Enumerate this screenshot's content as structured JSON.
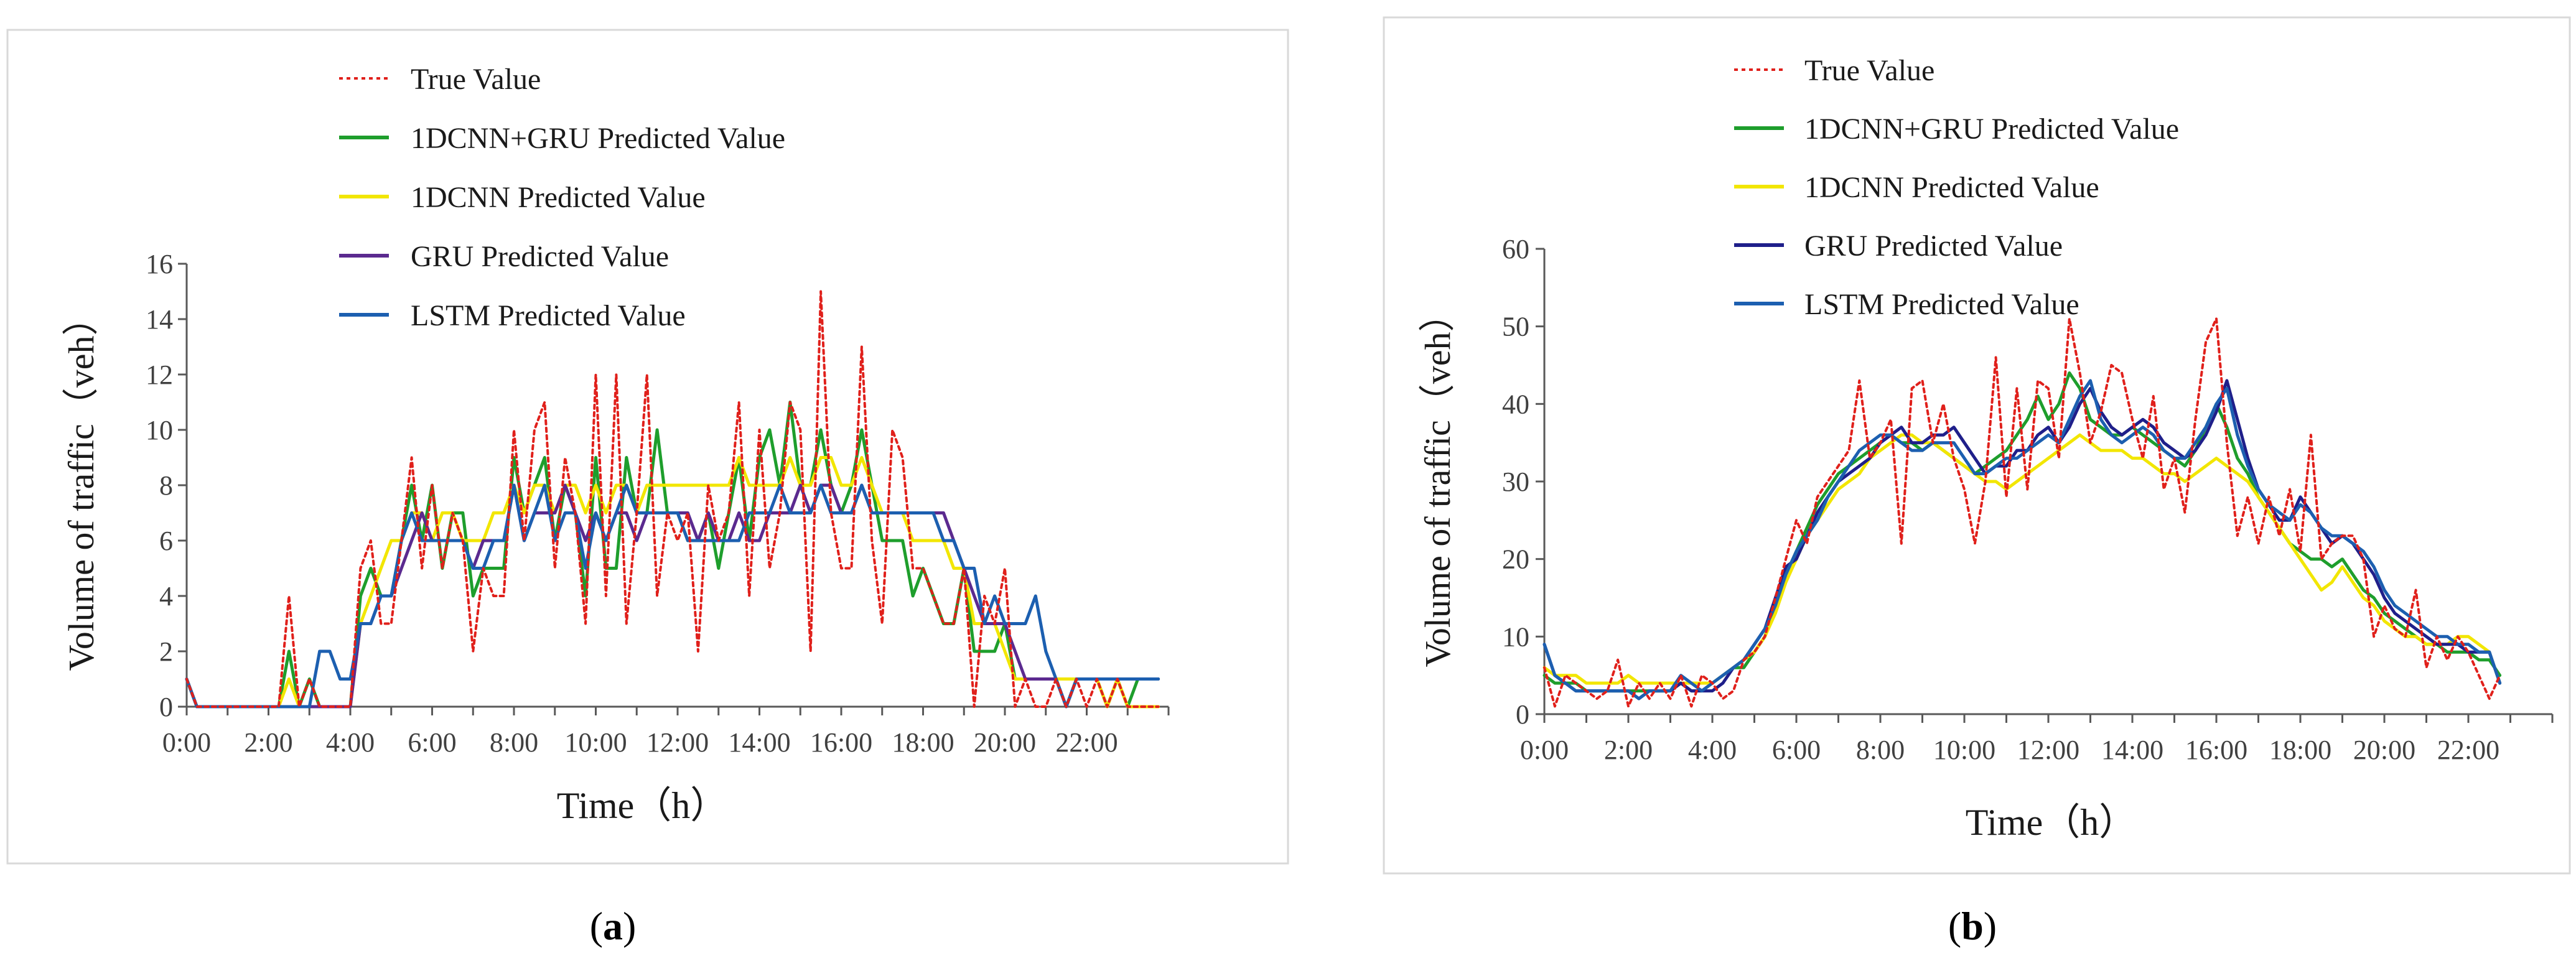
{
  "figure": {
    "panels": [
      {
        "caption_open": "(",
        "caption_letter": "a",
        "caption_close": ")"
      },
      {
        "caption_open": "(",
        "caption_letter": "b",
        "caption_close": ")"
      }
    ]
  },
  "chart_data": [
    {
      "type": "line",
      "title": "",
      "xlabel": "Time（h）",
      "ylabel": "Volume of traffic（veh）",
      "xlim": [
        0,
        24
      ],
      "ylim": [
        0,
        16
      ],
      "yticks": [
        0,
        2,
        4,
        6,
        8,
        10,
        12,
        14,
        16
      ],
      "xtick_labels": [
        "0:00",
        "2:00",
        "4:00",
        "6:00",
        "8:00",
        "10:00",
        "12:00",
        "14:00",
        "16:00",
        "18:00",
        "20:00",
        "22:00"
      ],
      "legend_position": "top-left",
      "x_step_hours": 0.25,
      "series": [
        {
          "name": "True Value",
          "color": "#e0201b",
          "style": "dotted",
          "values": [
            1,
            0,
            0,
            0,
            0,
            0,
            0,
            0,
            0,
            0,
            4,
            0,
            1,
            0,
            0,
            0,
            0,
            5,
            6,
            3,
            3,
            6,
            9,
            5,
            8,
            5,
            7,
            6,
            2,
            5,
            4,
            4,
            10,
            6,
            10,
            11,
            5,
            9,
            7,
            3,
            12,
            4,
            12,
            3,
            7,
            12,
            4,
            7,
            6,
            7,
            2,
            8,
            6,
            7,
            11,
            4,
            10,
            5,
            7,
            11,
            10,
            2,
            15,
            7,
            5,
            5,
            13,
            6,
            3,
            10,
            9,
            5,
            5,
            4,
            3,
            3,
            5,
            0,
            4,
            3,
            5,
            0,
            1,
            0,
            0,
            1,
            0,
            1,
            0,
            1,
            0,
            1,
            0,
            0,
            0,
            0
          ]
        },
        {
          "name": "1DCNN+GRU Predicted Value",
          "color": "#1e9e2c",
          "style": "solid",
          "values": [
            1,
            0,
            0,
            0,
            0,
            0,
            0,
            0,
            0,
            0,
            2,
            0,
            1,
            0,
            0,
            0,
            0,
            4,
            5,
            4,
            4,
            6,
            8,
            6,
            8,
            5,
            7,
            7,
            4,
            5,
            5,
            5,
            9,
            7,
            8,
            9,
            6,
            8,
            7,
            4,
            9,
            5,
            5,
            9,
            7,
            7,
            10,
            7,
            7,
            6,
            6,
            7,
            5,
            7,
            9,
            6,
            9,
            10,
            8,
            11,
            8,
            8,
            10,
            8,
            7,
            8,
            10,
            8,
            6,
            6,
            6,
            4,
            5,
            4,
            3,
            3,
            5,
            2,
            2,
            2,
            3,
            1,
            1,
            1,
            1,
            1,
            0,
            1,
            1,
            1,
            0,
            1,
            0,
            1,
            1,
            1
          ]
        },
        {
          "name": "1DCNN Predicted Value",
          "color": "#f2e600",
          "style": "solid",
          "values": [
            1,
            0,
            0,
            0,
            0,
            0,
            0,
            0,
            0,
            0,
            1,
            0,
            0,
            0,
            0,
            0,
            0,
            3,
            4,
            5,
            6,
            6,
            7,
            7,
            6,
            7,
            7,
            6,
            6,
            6,
            7,
            7,
            8,
            7,
            8,
            8,
            7,
            8,
            8,
            7,
            8,
            7,
            8,
            8,
            7,
            8,
            8,
            8,
            8,
            8,
            8,
            8,
            8,
            8,
            9,
            8,
            8,
            8,
            8,
            9,
            8,
            8,
            9,
            9,
            8,
            8,
            9,
            8,
            7,
            7,
            7,
            6,
            6,
            6,
            6,
            5,
            5,
            3,
            3,
            3,
            2,
            1,
            1,
            1,
            1,
            1,
            1,
            1,
            1,
            1,
            0,
            1,
            0,
            0,
            0,
            0
          ]
        },
        {
          "name": "GRU Predicted Value",
          "color": "#5b2a8f",
          "style": "solid",
          "values": [
            1,
            0,
            0,
            0,
            0,
            0,
            0,
            0,
            0,
            0,
            0,
            0,
            0,
            0,
            0,
            0,
            0,
            3,
            3,
            4,
            4,
            5,
            6,
            7,
            6,
            6,
            6,
            6,
            5,
            6,
            6,
            6,
            8,
            6,
            7,
            7,
            7,
            8,
            7,
            6,
            7,
            6,
            7,
            7,
            6,
            7,
            7,
            7,
            7,
            7,
            6,
            7,
            6,
            6,
            7,
            6,
            6,
            7,
            7,
            7,
            8,
            7,
            8,
            8,
            7,
            7,
            8,
            7,
            7,
            7,
            7,
            7,
            7,
            7,
            7,
            6,
            5,
            4,
            3,
            3,
            3,
            2,
            1,
            1,
            1,
            1,
            0,
            1,
            1,
            1,
            1,
            1,
            1,
            1,
            1,
            1
          ]
        },
        {
          "name": "LSTM Predicted Value",
          "color": "#1c5fb0",
          "style": "solid",
          "values": [
            1,
            0,
            0,
            0,
            0,
            0,
            0,
            0,
            0,
            0,
            0,
            0,
            0,
            2,
            2,
            1,
            1,
            3,
            3,
            4,
            4,
            6,
            7,
            6,
            6,
            6,
            6,
            6,
            5,
            5,
            6,
            6,
            8,
            6,
            7,
            8,
            6,
            7,
            7,
            5,
            7,
            6,
            7,
            8,
            7,
            7,
            7,
            7,
            7,
            6,
            6,
            6,
            6,
            6,
            6,
            7,
            7,
            7,
            8,
            7,
            7,
            7,
            8,
            7,
            7,
            7,
            8,
            7,
            7,
            7,
            7,
            7,
            7,
            7,
            6,
            6,
            5,
            5,
            3,
            4,
            3,
            3,
            3,
            4,
            2,
            1,
            0,
            1,
            1,
            1,
            1,
            1,
            1,
            1,
            1,
            1
          ]
        }
      ]
    },
    {
      "type": "line",
      "title": "",
      "xlabel": "Time（h）",
      "ylabel": "Volume of traffic（veh）",
      "xlim": [
        0,
        24
      ],
      "ylim": [
        0,
        60
      ],
      "yticks": [
        0,
        10,
        20,
        30,
        40,
        50,
        60
      ],
      "xtick_labels": [
        "0:00",
        "2:00",
        "4:00",
        "6:00",
        "8:00",
        "10:00",
        "12:00",
        "14:00",
        "16:00",
        "18:00",
        "20:00",
        "22:00"
      ],
      "legend_position": "top-left",
      "x_step_hours": 0.25,
      "series": [
        {
          "name": "True Value",
          "color": "#e0201b",
          "style": "dotted",
          "values": [
            6,
            1,
            5,
            4,
            3,
            2,
            3,
            7,
            1,
            4,
            2,
            4,
            2,
            5,
            1,
            5,
            4,
            2,
            3,
            7,
            8,
            10,
            15,
            20,
            25,
            22,
            28,
            30,
            32,
            34,
            43,
            33,
            35,
            38,
            22,
            42,
            43,
            35,
            40,
            33,
            29,
            22,
            30,
            46,
            28,
            42,
            29,
            43,
            42,
            33,
            51,
            44,
            35,
            39,
            45,
            44,
            38,
            33,
            41,
            29,
            33,
            26,
            38,
            48,
            51,
            35,
            23,
            28,
            22,
            28,
            23,
            29,
            21,
            36,
            20,
            22,
            23,
            23,
            20,
            10,
            14,
            11,
            10,
            16,
            6,
            10,
            7,
            10,
            8,
            5,
            2,
            5
          ]
        },
        {
          "name": "1DCNN+GRU Predicted Value",
          "color": "#1e9e2c",
          "style": "solid",
          "values": [
            5,
            4,
            4,
            4,
            3,
            3,
            3,
            3,
            3,
            3,
            3,
            3,
            3,
            4,
            3,
            3,
            4,
            5,
            6,
            6,
            8,
            10,
            14,
            18,
            21,
            24,
            27,
            29,
            31,
            32,
            33,
            34,
            35,
            36,
            35,
            35,
            34,
            35,
            34,
            33,
            32,
            31,
            32,
            33,
            34,
            36,
            38,
            41,
            38,
            40,
            44,
            42,
            38,
            37,
            36,
            36,
            37,
            36,
            35,
            34,
            33,
            32,
            34,
            37,
            40,
            37,
            33,
            31,
            28,
            26,
            24,
            22,
            21,
            20,
            20,
            19,
            20,
            18,
            16,
            15,
            13,
            12,
            11,
            10,
            9,
            9,
            8,
            8,
            8,
            7,
            7,
            5
          ]
        },
        {
          "name": "1DCNN Predicted Value",
          "color": "#f2e600",
          "style": "solid",
          "values": [
            6,
            5,
            5,
            5,
            4,
            4,
            4,
            4,
            5,
            4,
            4,
            4,
            4,
            4,
            4,
            4,
            4,
            5,
            6,
            7,
            8,
            10,
            13,
            17,
            20,
            23,
            25,
            27,
            29,
            30,
            31,
            33,
            34,
            35,
            36,
            36,
            35,
            35,
            34,
            33,
            32,
            31,
            30,
            30,
            29,
            30,
            31,
            32,
            33,
            34,
            35,
            36,
            35,
            34,
            34,
            34,
            33,
            33,
            32,
            31,
            31,
            30,
            31,
            32,
            33,
            32,
            31,
            30,
            28,
            26,
            24,
            22,
            20,
            18,
            16,
            17,
            19,
            17,
            15,
            14,
            12,
            11,
            10,
            10,
            9,
            9,
            9,
            10,
            10,
            9,
            8,
            4
          ]
        },
        {
          "name": "GRU Predicted Value",
          "color": "#1f1f8a",
          "style": "solid",
          "values": [
            9,
            5,
            4,
            3,
            3,
            3,
            3,
            3,
            3,
            2,
            3,
            3,
            3,
            4,
            3,
            3,
            3,
            4,
            6,
            7,
            9,
            11,
            15,
            19,
            20,
            23,
            26,
            28,
            30,
            31,
            32,
            33,
            35,
            36,
            37,
            35,
            35,
            36,
            36,
            37,
            35,
            33,
            31,
            32,
            32,
            34,
            34,
            36,
            37,
            35,
            37,
            40,
            42,
            39,
            37,
            36,
            37,
            38,
            37,
            35,
            34,
            33,
            34,
            36,
            39,
            43,
            38,
            33,
            29,
            27,
            25,
            25,
            28,
            26,
            24,
            22,
            23,
            22,
            20,
            18,
            15,
            13,
            12,
            11,
            10,
            9,
            9,
            9,
            8,
            8,
            8,
            4
          ]
        },
        {
          "name": "LSTM Predicted Value",
          "color": "#1c5fb0",
          "style": "solid",
          "values": [
            9,
            5,
            4,
            3,
            3,
            3,
            3,
            3,
            3,
            2,
            3,
            3,
            3,
            5,
            4,
            3,
            4,
            5,
            6,
            7,
            9,
            11,
            14,
            18,
            21,
            23,
            25,
            28,
            30,
            32,
            34,
            35,
            36,
            36,
            35,
            34,
            34,
            35,
            35,
            35,
            33,
            31,
            31,
            32,
            33,
            33,
            34,
            35,
            36,
            35,
            38,
            41,
            43,
            38,
            36,
            35,
            36,
            37,
            36,
            34,
            33,
            33,
            35,
            37,
            40,
            42,
            36,
            32,
            29,
            27,
            26,
            25,
            27,
            26,
            24,
            23,
            23,
            22,
            21,
            19,
            16,
            14,
            13,
            12,
            11,
            10,
            10,
            9,
            9,
            8,
            8,
            4
          ]
        }
      ]
    }
  ]
}
